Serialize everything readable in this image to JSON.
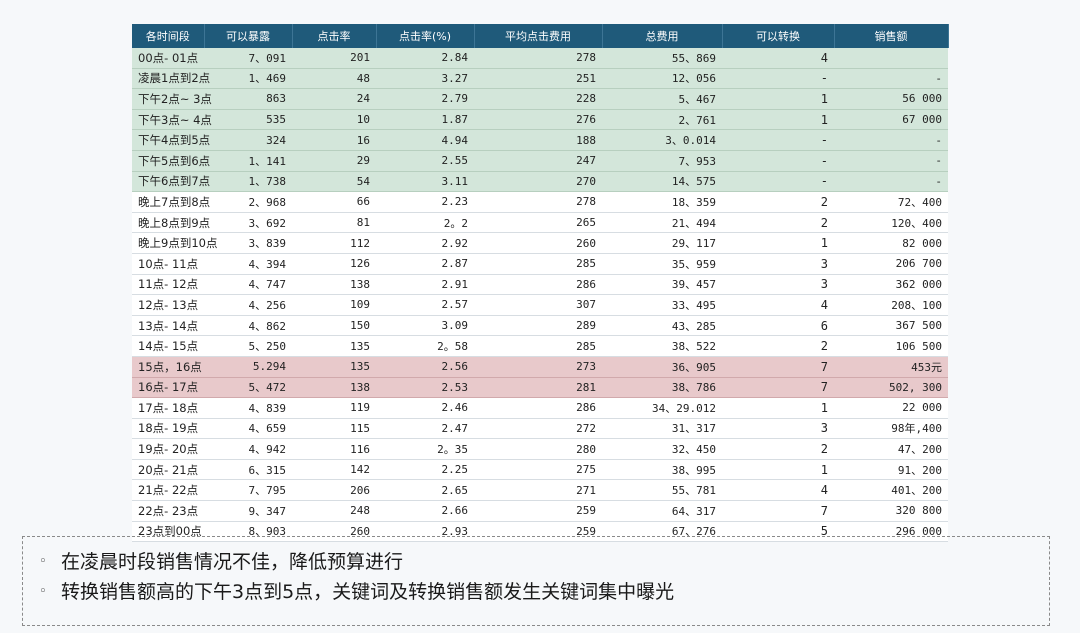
{
  "table": {
    "headers": [
      "各时间段",
      "可以暴露",
      "点击率",
      "点击率(%)",
      "平均点击费用",
      "总费用",
      "可以转换",
      "销售额"
    ],
    "rows": [
      {
        "hl": "green",
        "cells": [
          "00点- 01点",
          "7、091",
          "201",
          "2.84",
          "278",
          "55、869",
          "4",
          ""
        ]
      },
      {
        "hl": "green",
        "cells": [
          "凌晨1点到2点",
          "1、469",
          "48",
          "3.27",
          "251",
          "12、056",
          "-",
          "-"
        ]
      },
      {
        "hl": "green",
        "cells": [
          "下午2点~ 3点",
          "863",
          "24",
          "2.79",
          "228",
          "5、467",
          "1",
          "56 000"
        ]
      },
      {
        "hl": "green",
        "cells": [
          "下午3点~ 4点",
          "535",
          "10",
          "1.87",
          "276",
          "2、761",
          "1",
          "67 000"
        ]
      },
      {
        "hl": "green",
        "cells": [
          "下午4点到5点",
          "324",
          "16",
          "4.94",
          "188",
          "3、0.014",
          "-",
          "-"
        ]
      },
      {
        "hl": "green",
        "cells": [
          "下午5点到6点",
          "1、141",
          "29",
          "2.55",
          "247",
          "7、953",
          "-",
          "-"
        ]
      },
      {
        "hl": "green",
        "cells": [
          "下午6点到7点",
          "1、738",
          "54",
          "3.11",
          "270",
          "14、575",
          "-",
          "-"
        ]
      },
      {
        "hl": "",
        "cells": [
          "晚上7点到8点",
          "2、968",
          "66",
          "2.23",
          "278",
          "18、359",
          "2",
          "72、400"
        ]
      },
      {
        "hl": "",
        "cells": [
          "晚上8点到9点",
          "3、692",
          "81",
          "2。2",
          "265",
          "21、494",
          "2",
          "120、400"
        ]
      },
      {
        "hl": "",
        "cells": [
          "晚上9点到10点",
          "3、839",
          "112",
          "2.92",
          "260",
          "29、117",
          "1",
          "82 000"
        ]
      },
      {
        "hl": "",
        "cells": [
          "10点- 11点",
          "4、394",
          "126",
          "2.87",
          "285",
          "35、959",
          "3",
          "206 700"
        ]
      },
      {
        "hl": "",
        "cells": [
          "11点- 12点",
          "4、747",
          "138",
          "2.91",
          "286",
          "39、457",
          "3",
          "362 000"
        ]
      },
      {
        "hl": "",
        "cells": [
          "12点- 13点",
          "4、256",
          "109",
          "2.57",
          "307",
          "33、495",
          "4",
          "208、100"
        ]
      },
      {
        "hl": "",
        "cells": [
          "13点- 14点",
          "4、862",
          "150",
          "3.09",
          "289",
          "43、285",
          "6",
          "367 500"
        ]
      },
      {
        "hl": "",
        "cells": [
          "14点- 15点",
          "5、250",
          "135",
          "2。58",
          "285",
          "38、522",
          "2",
          "106 500"
        ]
      },
      {
        "hl": "pink",
        "cells": [
          "15点，16点",
          "5.294",
          "135",
          "2.56",
          "273",
          "36、905",
          "7",
          "453元"
        ]
      },
      {
        "hl": "pink",
        "cells": [
          "16点- 17点",
          "5、472",
          "138",
          "2.53",
          "281",
          "38、786",
          "7",
          "502, 300"
        ]
      },
      {
        "hl": "",
        "cells": [
          "17点- 18点",
          "4、839",
          "119",
          "2.46",
          "286",
          "34、29.012",
          "1",
          "22 000"
        ]
      },
      {
        "hl": "",
        "cells": [
          "18点- 19点",
          "4、659",
          "115",
          "2.47",
          "272",
          "31、317",
          "3",
          "98年,400"
        ]
      },
      {
        "hl": "",
        "cells": [
          "19点- 20点",
          "4、942",
          "116",
          "2。35",
          "280",
          "32、450",
          "2",
          "47、200"
        ]
      },
      {
        "hl": "",
        "cells": [
          "20点- 21点",
          "6、315",
          "142",
          "2.25",
          "275",
          "38、995",
          "1",
          "91、200"
        ]
      },
      {
        "hl": "",
        "cells": [
          "21点- 22点",
          "7、795",
          "206",
          "2.65",
          "271",
          "55、781",
          "4",
          "401、200"
        ]
      },
      {
        "hl": "",
        "cells": [
          "22点- 23点",
          "9、347",
          "248",
          "2.66",
          "259",
          "64、317",
          "7",
          "320 800"
        ]
      },
      {
        "hl": "",
        "cells": [
          "23点到00点",
          "8、903",
          "260",
          "2.93",
          "259",
          "67、276",
          "5",
          "296 000"
        ]
      }
    ]
  },
  "notes": [
    "在凌晨时段销售情况不佳，降低预算进行",
    "转换销售额高的下午3点到5点，关键词及转换销售额发生关键词集中曝光"
  ]
}
